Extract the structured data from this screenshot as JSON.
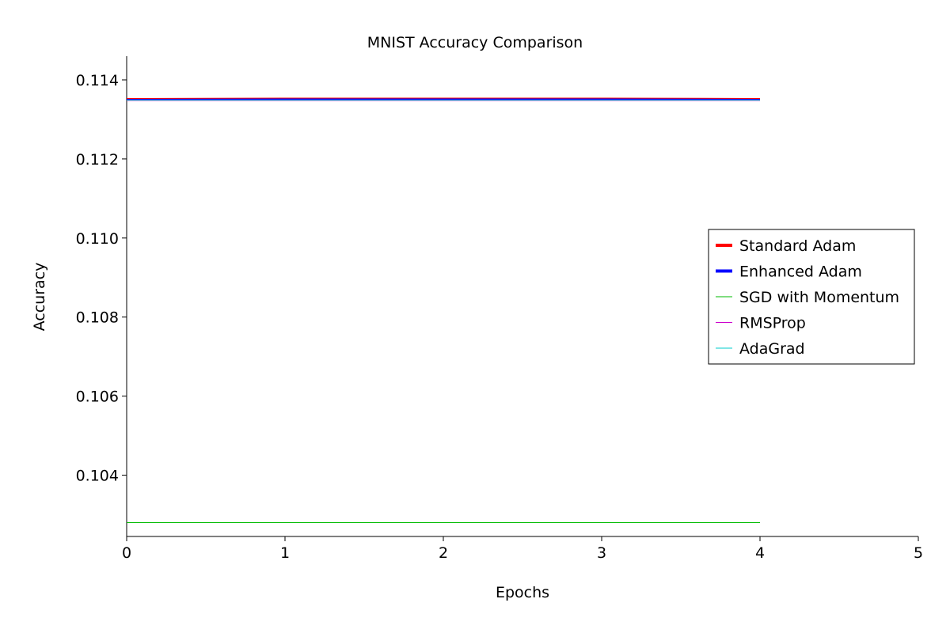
{
  "chart_data": {
    "type": "line",
    "title": "MNIST Accuracy Comparison",
    "xlabel": "Epochs",
    "ylabel": "Accuracy",
    "xlim": [
      0,
      5
    ],
    "ylim": [
      0.10245,
      0.1146
    ],
    "xticks": [
      "0",
      "1",
      "2",
      "3",
      "4",
      "5"
    ],
    "yticks": [
      "0.104",
      "0.106",
      "0.108",
      "0.110",
      "0.112",
      "0.114"
    ],
    "grid": false,
    "legend_position": "center-right",
    "x": [
      0,
      1,
      2,
      3,
      4
    ],
    "series": [
      {
        "name": "Standard Adam",
        "color": "#ff0000",
        "values": [
          0.11352,
          0.11353,
          0.11353,
          0.11353,
          0.11352
        ]
      },
      {
        "name": "Enhanced Adam",
        "color": "#0000ff",
        "values": [
          0.1135,
          0.11351,
          0.11351,
          0.11351,
          0.1135
        ]
      },
      {
        "name": "SGD with Momentum",
        "color": "#00bb00",
        "values": [
          0.1028,
          0.1028,
          0.1028,
          0.1028,
          0.1028
        ]
      },
      {
        "name": "RMSProp",
        "color": "#cc00cc",
        "values": [
          0.11348,
          0.11348,
          0.11348,
          0.11348,
          0.11348
        ]
      },
      {
        "name": "AdaGrad",
        "color": "#00cccc",
        "values": [
          0.11349,
          0.11349,
          0.11349,
          0.11349,
          0.11349
        ]
      }
    ]
  }
}
